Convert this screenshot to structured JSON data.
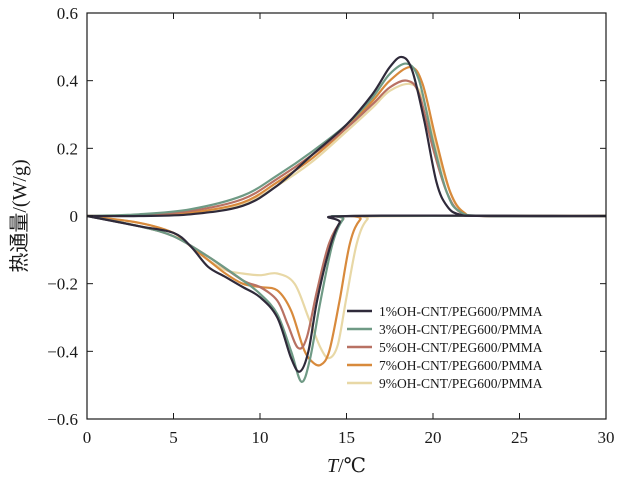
{
  "chart_data": {
    "type": "line",
    "xlabel": "T/℃",
    "ylabel": "热通量/(W/g)",
    "xlim": [
      0,
      30
    ],
    "ylim": [
      -0.6,
      0.6
    ],
    "x_ticks": [
      0,
      5,
      10,
      15,
      20,
      25,
      30
    ],
    "x_tick_labels": [
      "0",
      "5",
      "10",
      "15",
      "20",
      "25",
      "30"
    ],
    "y_ticks": [
      -0.6,
      -0.4,
      -0.2,
      0,
      0.2,
      0.4,
      0.6
    ],
    "y_tick_labels": [
      "−0.6",
      "−0.4",
      "−0.2",
      "0",
      "0.2",
      "0.4",
      "0.6"
    ],
    "grid": false,
    "legend_position": "bottom-right",
    "series": [
      {
        "name": "1%OH-CNT/PEG600/PMMA",
        "color": "#2f2a3a",
        "heating": [
          [
            0,
            0
          ],
          [
            3,
            0
          ],
          [
            6,
            0.005
          ],
          [
            9,
            0.03
          ],
          [
            11,
            0.09
          ],
          [
            13,
            0.18
          ],
          [
            15,
            0.27
          ],
          [
            16.5,
            0.36
          ],
          [
            17.5,
            0.44
          ],
          [
            18.2,
            0.47
          ],
          [
            18.8,
            0.43
          ],
          [
            19.5,
            0.28
          ],
          [
            20.2,
            0.1
          ],
          [
            20.8,
            0.03
          ],
          [
            21.5,
            0.005
          ],
          [
            23,
            0
          ],
          [
            30,
            0
          ]
        ],
        "cooling": [
          [
            0,
            0
          ],
          [
            3,
            -0.03
          ],
          [
            5,
            -0.05
          ],
          [
            6,
            -0.09
          ],
          [
            7,
            -0.15
          ],
          [
            8,
            -0.18
          ],
          [
            9,
            -0.21
          ],
          [
            10,
            -0.24
          ],
          [
            11,
            -0.3
          ],
          [
            11.8,
            -0.42
          ],
          [
            12.3,
            -0.46
          ],
          [
            12.8,
            -0.4
          ],
          [
            13.3,
            -0.25
          ],
          [
            14,
            -0.1
          ],
          [
            14.6,
            -0.02
          ],
          [
            15.2,
            0
          ],
          [
            30,
            0
          ]
        ]
      },
      {
        "name": "3%OH-CNT/PEG600/PMMA",
        "color": "#6f9a85",
        "heating": [
          [
            0,
            0
          ],
          [
            3,
            0.005
          ],
          [
            6,
            0.02
          ],
          [
            9,
            0.06
          ],
          [
            11,
            0.12
          ],
          [
            13,
            0.19
          ],
          [
            15,
            0.27
          ],
          [
            16.5,
            0.35
          ],
          [
            17.5,
            0.42
          ],
          [
            18.5,
            0.45
          ],
          [
            19.2,
            0.4
          ],
          [
            20,
            0.22
          ],
          [
            20.8,
            0.07
          ],
          [
            21.5,
            0.015
          ],
          [
            23,
            0
          ],
          [
            30,
            0
          ]
        ],
        "cooling": [
          [
            0,
            0
          ],
          [
            3,
            -0.03
          ],
          [
            5,
            -0.06
          ],
          [
            7,
            -0.12
          ],
          [
            9,
            -0.19
          ],
          [
            10,
            -0.23
          ],
          [
            11,
            -0.29
          ],
          [
            11.8,
            -0.4
          ],
          [
            12.4,
            -0.49
          ],
          [
            12.9,
            -0.42
          ],
          [
            13.5,
            -0.25
          ],
          [
            14.2,
            -0.08
          ],
          [
            14.8,
            -0.01
          ],
          [
            15.4,
            0
          ],
          [
            30,
            0
          ]
        ]
      },
      {
        "name": "5%OH-CNT/PEG600/PMMA",
        "color": "#b87163",
        "heating": [
          [
            0,
            0
          ],
          [
            3,
            0.003
          ],
          [
            6,
            0.015
          ],
          [
            9,
            0.05
          ],
          [
            11,
            0.11
          ],
          [
            13,
            0.18
          ],
          [
            15,
            0.26
          ],
          [
            16.5,
            0.33
          ],
          [
            17.5,
            0.38
          ],
          [
            18.5,
            0.4
          ],
          [
            19.2,
            0.36
          ],
          [
            20,
            0.2
          ],
          [
            20.8,
            0.07
          ],
          [
            21.6,
            0.01
          ],
          [
            23,
            0
          ],
          [
            30,
            0
          ]
        ],
        "cooling": [
          [
            0,
            0
          ],
          [
            3,
            -0.03
          ],
          [
            5,
            -0.06
          ],
          [
            7,
            -0.12
          ],
          [
            9,
            -0.19
          ],
          [
            10,
            -0.21
          ],
          [
            11,
            -0.25
          ],
          [
            11.6,
            -0.32
          ],
          [
            12.2,
            -0.39
          ],
          [
            12.7,
            -0.36
          ],
          [
            13.3,
            -0.22
          ],
          [
            14,
            -0.08
          ],
          [
            14.8,
            -0.01
          ],
          [
            15.5,
            0
          ],
          [
            30,
            0
          ]
        ]
      },
      {
        "name": "7%OH-CNT/PEG600/PMMA",
        "color": "#d88a3c",
        "heating": [
          [
            0,
            0
          ],
          [
            3,
            0.002
          ],
          [
            6,
            0.01
          ],
          [
            9,
            0.04
          ],
          [
            11,
            0.1
          ],
          [
            13,
            0.17
          ],
          [
            15,
            0.26
          ],
          [
            16.5,
            0.34
          ],
          [
            17.5,
            0.4
          ],
          [
            18.7,
            0.44
          ],
          [
            19.4,
            0.39
          ],
          [
            20.2,
            0.22
          ],
          [
            21,
            0.07
          ],
          [
            21.8,
            0.01
          ],
          [
            23,
            0
          ],
          [
            30,
            0
          ]
        ],
        "cooling": [
          [
            0,
            0
          ],
          [
            3,
            -0.02
          ],
          [
            5,
            -0.05
          ],
          [
            6,
            -0.09
          ],
          [
            7,
            -0.13
          ],
          [
            8,
            -0.17
          ],
          [
            9,
            -0.2
          ],
          [
            10,
            -0.21
          ],
          [
            11,
            -0.22
          ],
          [
            11.8,
            -0.28
          ],
          [
            12.5,
            -0.39
          ],
          [
            13,
            -0.43
          ],
          [
            13.5,
            -0.44
          ],
          [
            14,
            -0.4
          ],
          [
            14.6,
            -0.25
          ],
          [
            15.2,
            -0.08
          ],
          [
            15.8,
            -0.01
          ],
          [
            16.5,
            0
          ],
          [
            30,
            0
          ]
        ]
      },
      {
        "name": "9%OH-CNT/PEG600/PMMA",
        "color": "#e8d8a6",
        "heating": [
          [
            0,
            0
          ],
          [
            3,
            0.002
          ],
          [
            6,
            0.01
          ],
          [
            9,
            0.035
          ],
          [
            11,
            0.09
          ],
          [
            13,
            0.16
          ],
          [
            15,
            0.25
          ],
          [
            16.5,
            0.32
          ],
          [
            17.5,
            0.37
          ],
          [
            18.7,
            0.39
          ],
          [
            19.4,
            0.35
          ],
          [
            20.2,
            0.2
          ],
          [
            21,
            0.07
          ],
          [
            21.8,
            0.01
          ],
          [
            23,
            0
          ],
          [
            30,
            0
          ]
        ],
        "cooling": [
          [
            0,
            0
          ],
          [
            3,
            -0.02
          ],
          [
            5,
            -0.05
          ],
          [
            6,
            -0.09
          ],
          [
            7,
            -0.13
          ],
          [
            8,
            -0.16
          ],
          [
            9,
            -0.17
          ],
          [
            10,
            -0.175
          ],
          [
            11,
            -0.17
          ],
          [
            12,
            -0.2
          ],
          [
            12.8,
            -0.3
          ],
          [
            13.5,
            -0.39
          ],
          [
            14,
            -0.42
          ],
          [
            14.5,
            -0.38
          ],
          [
            15,
            -0.24
          ],
          [
            15.6,
            -0.08
          ],
          [
            16.2,
            -0.01
          ],
          [
            17,
            0
          ],
          [
            30,
            0
          ]
        ]
      }
    ]
  }
}
